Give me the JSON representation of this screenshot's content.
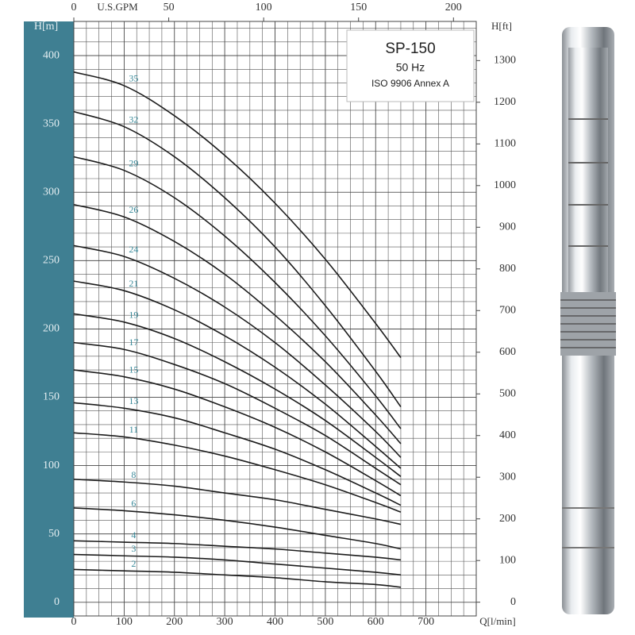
{
  "chart_data": {
    "type": "line",
    "y_label": "H[m]",
    "y2_label": "H[ft]",
    "x_label": "Q[l/min]",
    "x2_label": "U.S.GPM",
    "legend_box": {
      "title": "SP-150",
      "frequency": "50 Hz",
      "standard": "ISO 9906 Annex A"
    },
    "x": [
      0,
      100,
      200,
      300,
      400,
      500,
      600,
      650
    ],
    "xlim": [
      0,
      800
    ],
    "xticks": [
      0,
      100,
      200,
      300,
      400,
      500,
      600,
      700
    ],
    "x2lim": [
      0,
      212
    ],
    "x2ticks": [
      0,
      50,
      100,
      150,
      200
    ],
    "ylim": [
      -10,
      425
    ],
    "yticks": [
      0,
      50,
      100,
      150,
      200,
      250,
      300,
      350,
      400
    ],
    "y2lim": [
      -33,
      1394
    ],
    "y2ticks": [
      0,
      100,
      200,
      300,
      400,
      500,
      600,
      700,
      800,
      900,
      1000,
      1100,
      1200,
      1300
    ],
    "grid": true,
    "series": [
      {
        "name": "35",
        "color": "#1c1c1c",
        "values": [
          388,
          378,
          356,
          327,
          292,
          251,
          204,
          179
        ]
      },
      {
        "name": "32",
        "color": "#1c1c1c",
        "values": [
          359,
          348,
          326,
          296,
          260,
          217,
          169,
          143
        ]
      },
      {
        "name": "29",
        "color": "#1c1c1c",
        "values": [
          326,
          316,
          296,
          268,
          234,
          195,
          151,
          127
        ]
      },
      {
        "name": "26",
        "color": "#1c1c1c",
        "values": [
          291,
          282,
          264,
          240,
          210,
          176,
          137,
          116
        ]
      },
      {
        "name": "24",
        "color": "#1c1c1c",
        "values": [
          261,
          253,
          237,
          216,
          190,
          159,
          125,
          106
        ]
      },
      {
        "name": "21",
        "color": "#1c1c1c",
        "values": [
          235,
          228,
          214,
          195,
          172,
          145,
          114,
          98
        ]
      },
      {
        "name": "19",
        "color": "#1c1c1c",
        "values": [
          211,
          205,
          193,
          176,
          156,
          133,
          106,
          92
        ]
      },
      {
        "name": "17",
        "color": "#1c1c1c",
        "values": [
          190,
          185,
          174,
          160,
          142,
          122,
          98,
          86
        ]
      },
      {
        "name": "15",
        "color": "#1c1c1c",
        "values": [
          170,
          165,
          156,
          143,
          128,
          110,
          89,
          78
        ]
      },
      {
        "name": "13",
        "color": "#1c1c1c",
        "values": [
          146,
          142,
          135,
          124,
          112,
          97,
          80,
          71
        ]
      },
      {
        "name": "11",
        "color": "#1c1c1c",
        "values": [
          124,
          121,
          115,
          107,
          97,
          86,
          73,
          66
        ]
      },
      {
        "name": "8",
        "color": "#1c1c1c",
        "values": [
          90,
          88,
          85,
          80,
          75,
          68,
          61,
          57
        ]
      },
      {
        "name": "6",
        "color": "#1c1c1c",
        "values": [
          69,
          67,
          64,
          60,
          55,
          49,
          43,
          39
        ]
      },
      {
        "name": "4",
        "color": "#1c1c1c",
        "values": [
          45,
          44,
          43,
          41,
          39,
          36,
          33,
          31
        ]
      },
      {
        "name": "3",
        "color": "#1c1c1c",
        "values": [
          35,
          34,
          33,
          31,
          28,
          25,
          22,
          20
        ]
      },
      {
        "name": "2",
        "color": "#1c1c1c",
        "values": [
          24,
          23,
          22,
          20,
          18,
          15,
          13,
          11
        ]
      }
    ]
  }
}
